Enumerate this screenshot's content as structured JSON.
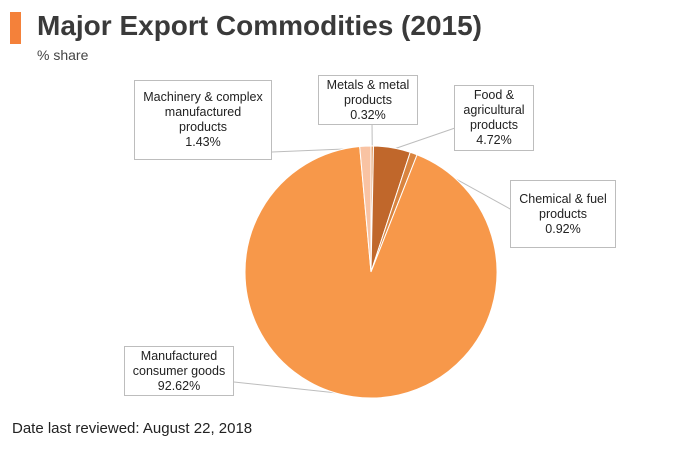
{
  "header": {
    "title": "Major Export Commodities (2015)",
    "subtitle": "% share"
  },
  "footer": {
    "reviewed": "Date last reviewed: August 22, 2018"
  },
  "chart_data": {
    "type": "pie",
    "title": "Major Export Commodities (2015)",
    "unit": "% share",
    "start_angle_deg": 0,
    "direction": "clockwise",
    "slices": [
      {
        "label": "Metals & metal products",
        "value": 0.32,
        "value_label": "0.32%",
        "color": "#e3a06b"
      },
      {
        "label": "Food & agricultural products",
        "value": 4.72,
        "value_label": "4.72%",
        "color": "#c0672b"
      },
      {
        "label": "Chemical & fuel products",
        "value": 0.92,
        "value_label": "0.92%",
        "color": "#d9843f"
      },
      {
        "label": "Manufactured consumer goods",
        "value": 92.62,
        "value_label": "92.62%",
        "color": "#f7984a"
      },
      {
        "label": "Machinery & complex manufactured products",
        "value": 1.43,
        "value_label": "1.43%",
        "color": "#f9c3a3"
      }
    ],
    "label_lines": [
      [
        "Metals & metal",
        "products",
        "0.32%"
      ],
      [
        "Food &",
        "agricultural",
        "products",
        "4.72%"
      ],
      [
        "Chemical & fuel",
        "products",
        "0.92%"
      ],
      [
        "Manufactured",
        "consumer goods",
        "92.62%"
      ],
      [
        "Machinery & complex",
        "manufactured",
        "products",
        "1.43%"
      ]
    ]
  }
}
